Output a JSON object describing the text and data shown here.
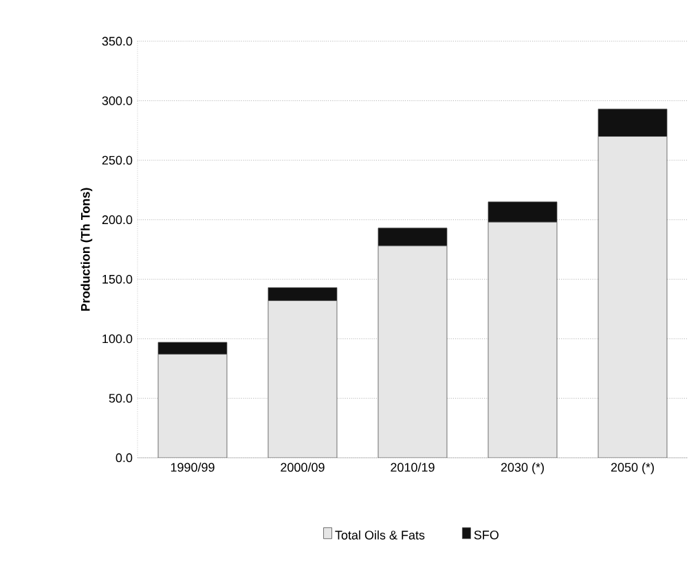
{
  "chart_data": {
    "type": "bar",
    "stacked": true,
    "ylabel": "Production (Th Tons)",
    "categories": [
      "1990/99",
      "2000/09",
      "2010/19",
      "2030 (*)",
      "2050 (*)"
    ],
    "series": [
      {
        "name": "Total Oils & Fats",
        "color": "#e6e6e6",
        "values": [
          87,
          132,
          178,
          198,
          270
        ]
      },
      {
        "name": "SFO",
        "color": "#111111",
        "values": [
          10,
          11,
          15,
          17,
          23
        ]
      }
    ],
    "ylim": [
      0,
      350
    ],
    "yticks": [
      {
        "value": 0,
        "label": "0.0"
      },
      {
        "value": 50,
        "label": "50.0"
      },
      {
        "value": 100,
        "label": "100.0"
      },
      {
        "value": 150,
        "label": "150.0"
      },
      {
        "value": 200,
        "label": "200.0"
      },
      {
        "value": 250,
        "label": "250.0"
      },
      {
        "value": 300,
        "label": "300.0"
      },
      {
        "value": 350,
        "label": "350.0"
      }
    ],
    "grid": "y",
    "legend": "bottom"
  }
}
